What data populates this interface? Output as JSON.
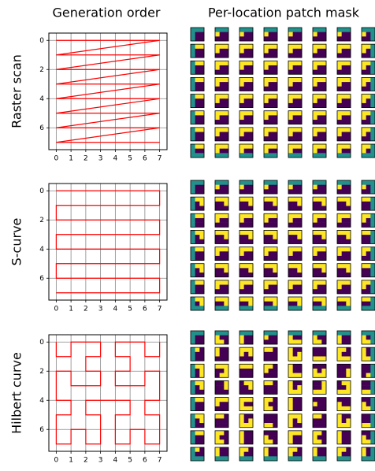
{
  "titles": [
    "Generation order",
    "Per-location patch mask"
  ],
  "mask_colors": {
    "generated": "#fde725",
    "pending": "#440154",
    "outside": "#21918c"
  },
  "chart_data": [
    {
      "type": "line",
      "ylabel": "Raster scan",
      "color": "#ff0000",
      "grid": true,
      "xlim": [
        -0.5,
        7.5
      ],
      "ylim": [
        7.5,
        -0.5
      ],
      "xticks": [
        0,
        1,
        2,
        3,
        4,
        5,
        6,
        7
      ],
      "yticks": [
        0,
        2,
        4,
        6
      ],
      "x": [
        0,
        1,
        2,
        3,
        4,
        5,
        6,
        7,
        0,
        1,
        2,
        3,
        4,
        5,
        6,
        7,
        0,
        1,
        2,
        3,
        4,
        5,
        6,
        7,
        0,
        1,
        2,
        3,
        4,
        5,
        6,
        7,
        0,
        1,
        2,
        3,
        4,
        5,
        6,
        7,
        0,
        1,
        2,
        3,
        4,
        5,
        6,
        7,
        0,
        1,
        2,
        3,
        4,
        5,
        6,
        7,
        0,
        1,
        2,
        3,
        4,
        5,
        6,
        7
      ],
      "y": [
        0,
        0,
        0,
        0,
        0,
        0,
        0,
        0,
        1,
        1,
        1,
        1,
        1,
        1,
        1,
        1,
        2,
        2,
        2,
        2,
        2,
        2,
        2,
        2,
        3,
        3,
        3,
        3,
        3,
        3,
        3,
        3,
        4,
        4,
        4,
        4,
        4,
        4,
        4,
        4,
        5,
        5,
        5,
        5,
        5,
        5,
        5,
        5,
        6,
        6,
        6,
        6,
        6,
        6,
        6,
        6,
        7,
        7,
        7,
        7,
        7,
        7,
        7,
        7
      ]
    },
    {
      "type": "line",
      "ylabel": "S-curve",
      "color": "#ff0000",
      "grid": true,
      "xlim": [
        -0.5,
        7.5
      ],
      "ylim": [
        7.5,
        -0.5
      ],
      "xticks": [
        0,
        1,
        2,
        3,
        4,
        5,
        6,
        7
      ],
      "yticks": [
        0,
        2,
        4,
        6
      ],
      "x": [
        0,
        1,
        2,
        3,
        4,
        5,
        6,
        7,
        7,
        6,
        5,
        4,
        3,
        2,
        1,
        0,
        0,
        1,
        2,
        3,
        4,
        5,
        6,
        7,
        7,
        6,
        5,
        4,
        3,
        2,
        1,
        0,
        0,
        1,
        2,
        3,
        4,
        5,
        6,
        7,
        7,
        6,
        5,
        4,
        3,
        2,
        1,
        0,
        0,
        1,
        2,
        3,
        4,
        5,
        6,
        7,
        7,
        6,
        5,
        4,
        3,
        2,
        1,
        0
      ],
      "y": [
        0,
        0,
        0,
        0,
        0,
        0,
        0,
        0,
        1,
        1,
        1,
        1,
        1,
        1,
        1,
        1,
        2,
        2,
        2,
        2,
        2,
        2,
        2,
        2,
        3,
        3,
        3,
        3,
        3,
        3,
        3,
        3,
        4,
        4,
        4,
        4,
        4,
        4,
        4,
        4,
        5,
        5,
        5,
        5,
        5,
        5,
        5,
        5,
        6,
        6,
        6,
        6,
        6,
        6,
        6,
        6,
        7,
        7,
        7,
        7,
        7,
        7,
        7,
        7
      ]
    },
    {
      "type": "line",
      "ylabel": "Hilbert curve",
      "color": "#ff0000",
      "grid": true,
      "xlim": [
        -0.5,
        7.5
      ],
      "ylim": [
        7.5,
        -0.5
      ],
      "xticks": [
        0,
        1,
        2,
        3,
        4,
        5,
        6,
        7
      ],
      "yticks": [
        0,
        2,
        4,
        6
      ],
      "x": [
        0,
        0,
        1,
        1,
        2,
        3,
        3,
        2,
        2,
        3,
        3,
        2,
        1,
        1,
        0,
        0,
        0,
        1,
        1,
        0,
        0,
        0,
        1,
        1,
        2,
        2,
        3,
        3,
        3,
        2,
        2,
        3,
        4,
        5,
        5,
        4,
        4,
        4,
        5,
        5,
        6,
        6,
        7,
        7,
        7,
        6,
        6,
        7,
        7,
        7,
        6,
        6,
        5,
        4,
        4,
        5,
        5,
        4,
        4,
        5,
        6,
        6,
        7,
        7
      ],
      "y": [
        0,
        1,
        1,
        0,
        0,
        0,
        1,
        1,
        2,
        2,
        3,
        3,
        3,
        2,
        2,
        3,
        4,
        4,
        5,
        5,
        6,
        7,
        7,
        6,
        6,
        7,
        7,
        6,
        5,
        5,
        4,
        4,
        4,
        4,
        5,
        5,
        6,
        7,
        7,
        6,
        6,
        7,
        7,
        6,
        5,
        5,
        4,
        4,
        3,
        2,
        2,
        3,
        3,
        3,
        2,
        2,
        1,
        1,
        0,
        0,
        0,
        1,
        1,
        0
      ]
    }
  ]
}
